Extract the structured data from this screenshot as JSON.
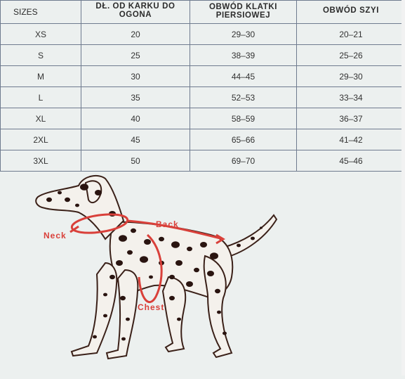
{
  "table": {
    "headers": [
      "SIZES",
      "DŁ. OD KARKU DO OGONA",
      "OBWÓD KLATKI PIERSIOWEJ",
      "OBWÓD SZYI"
    ],
    "rows": [
      [
        "XS",
        "20",
        "29–30",
        "20–21"
      ],
      [
        "S",
        "25",
        "38–39",
        "25–26"
      ],
      [
        "M",
        "30",
        "44–45",
        "29–30"
      ],
      [
        "L",
        "35",
        "52–53",
        "33–34"
      ],
      [
        "XL",
        "40",
        "58–59",
        "36–37"
      ],
      [
        "2XL",
        "45",
        "65–66",
        "41–42"
      ],
      [
        "3XL",
        "50",
        "69–70",
        "45–46"
      ]
    ]
  },
  "diagram": {
    "labels": {
      "neck": "Neck",
      "back": "Back",
      "chest": "Chest"
    },
    "colors": {
      "measure": "#d9403a",
      "dog_spots": "#2a1410",
      "dog_body": "#f4f1ec"
    }
  }
}
